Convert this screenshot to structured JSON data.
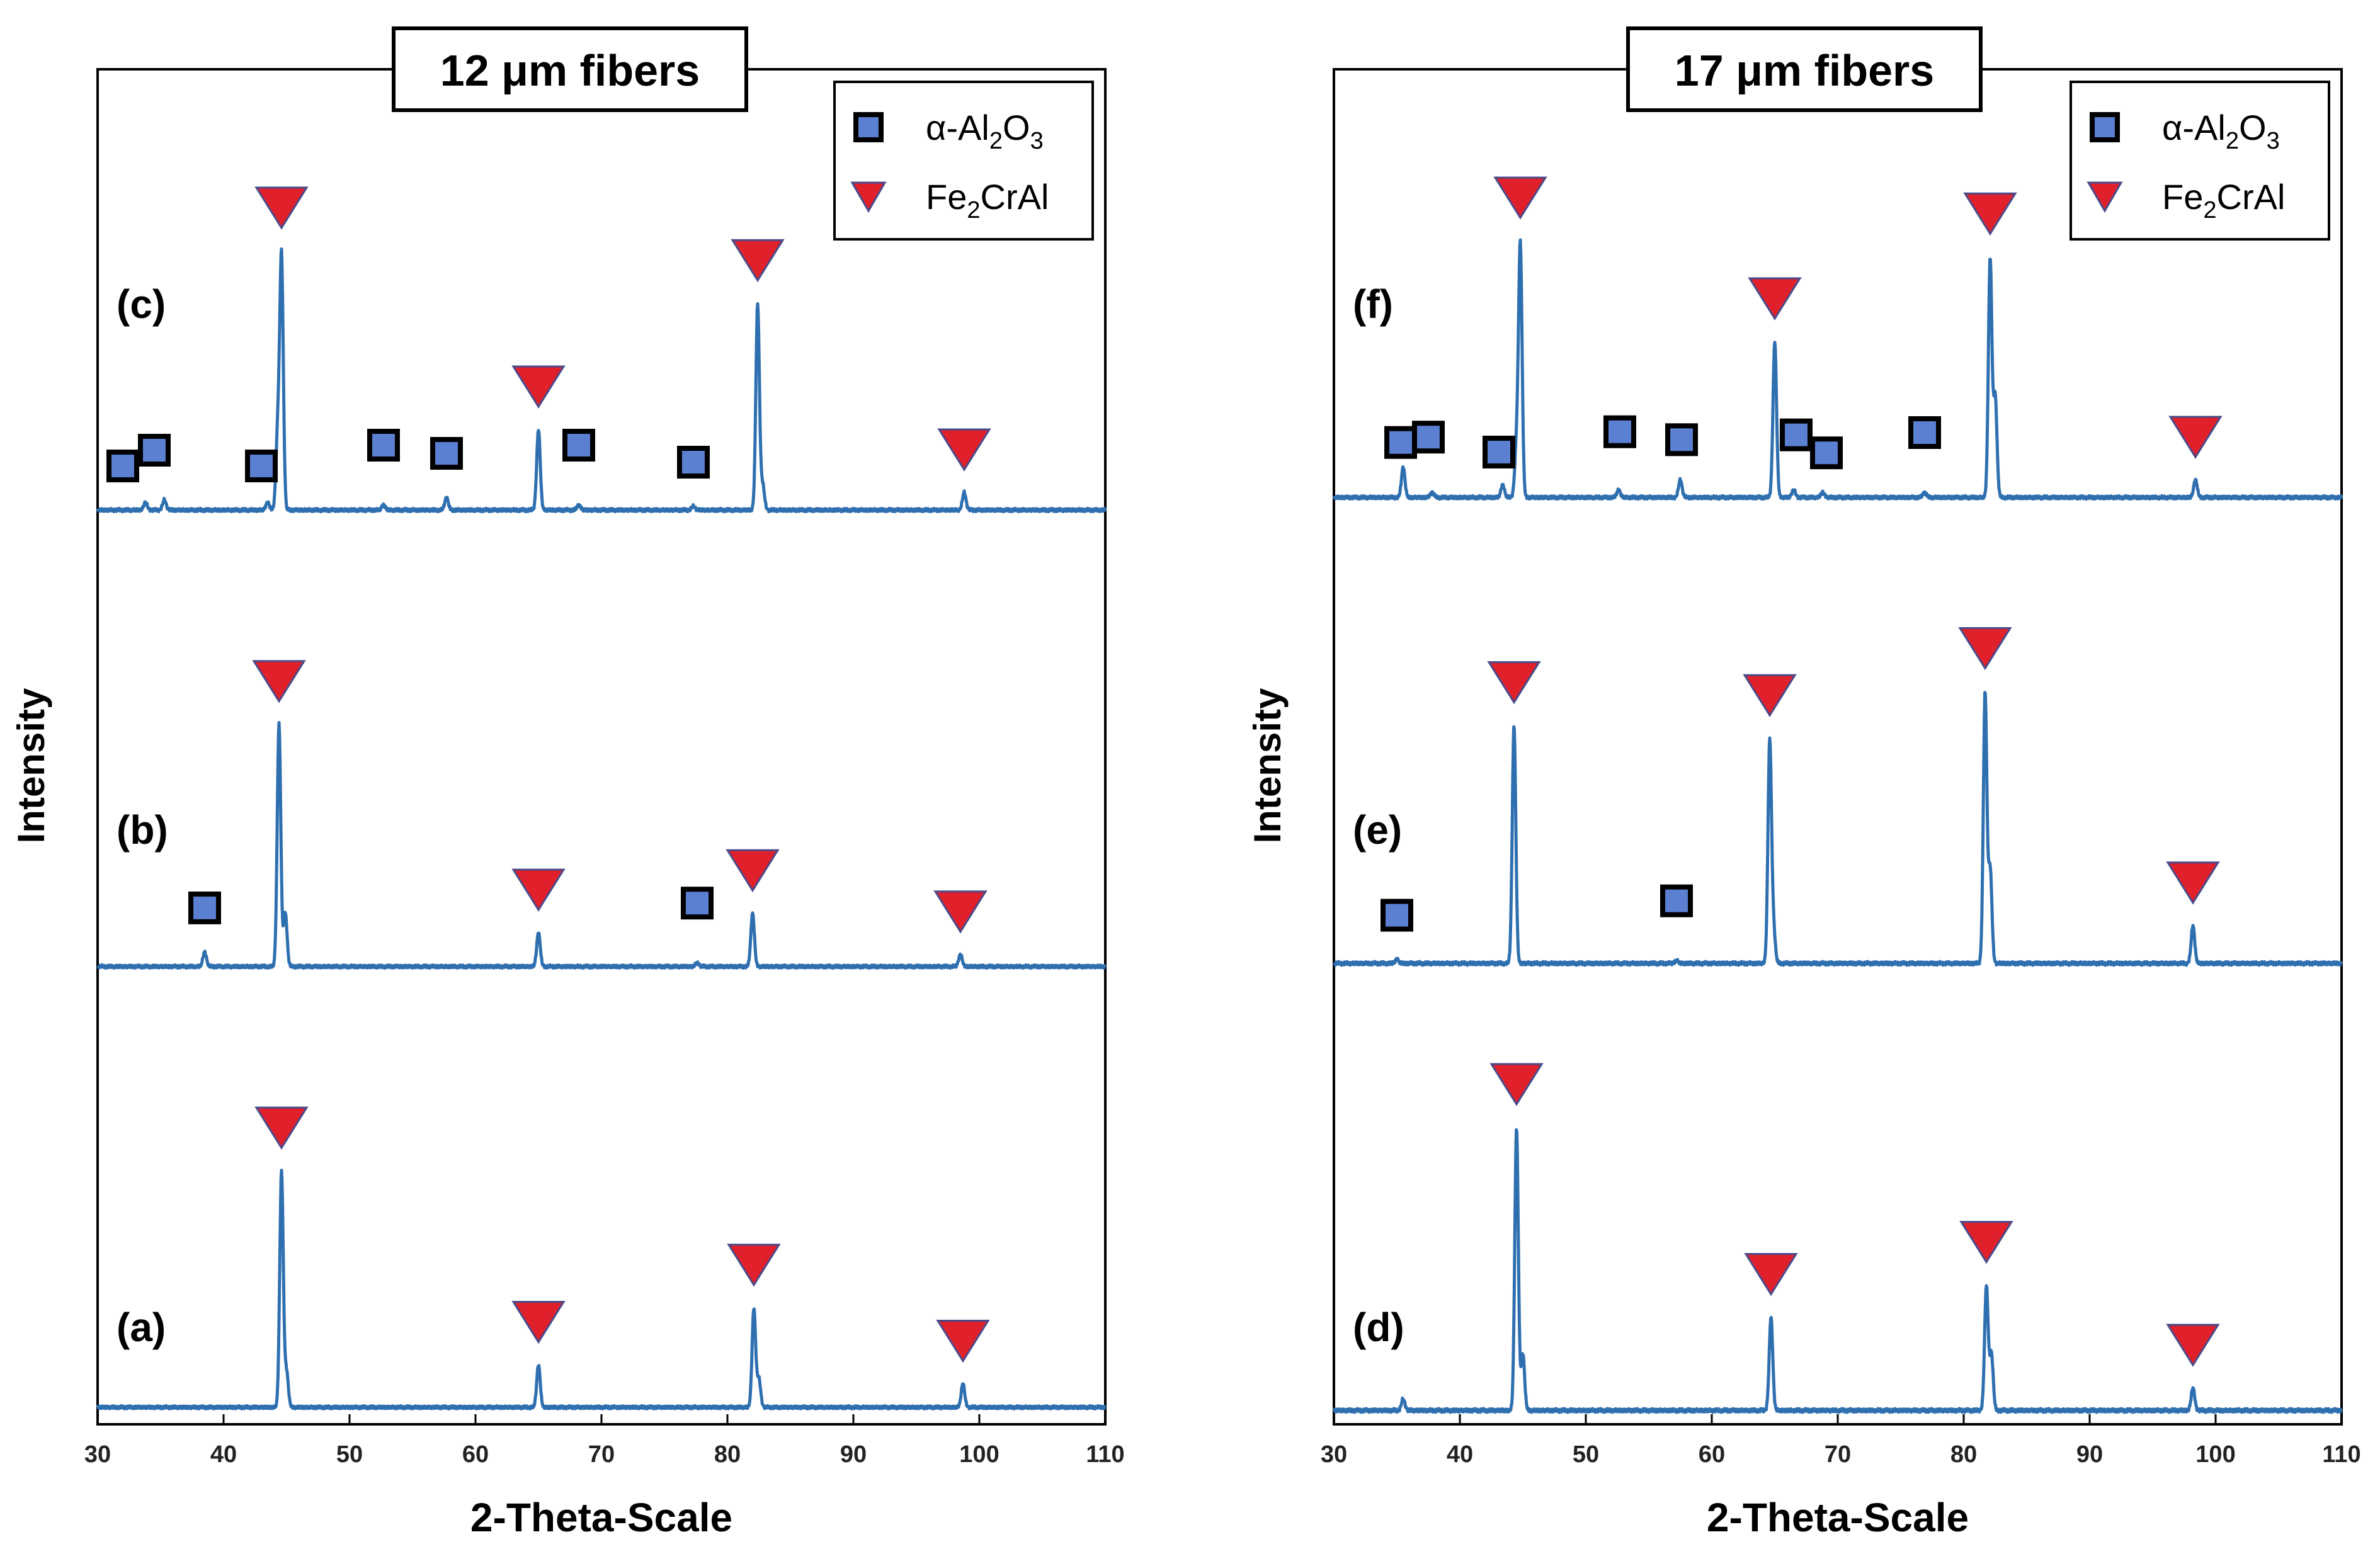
{
  "legend": {
    "entries": [
      "α-Al2O3",
      "Fe2CrAl"
    ],
    "placement": "top-right"
  },
  "colors": {
    "trace": "#2e6fb0",
    "square": "#5b7fd1",
    "triangle": "#e0202a",
    "frame": "#000000"
  },
  "chart_data": [
    {
      "type": "line",
      "title": "12 μm fibers",
      "xlabel": "2-Theta-Scale",
      "ylabel": "Intensity",
      "xlim": [
        30,
        110
      ],
      "xticks": [
        "30",
        "40",
        "50",
        "60",
        "70",
        "80",
        "90",
        "100",
        "110"
      ],
      "series": [
        {
          "name": "(a)",
          "label": "(a)",
          "peaks": [
            [
              44.6,
              1.0
            ],
            [
              45.0,
              0.15
            ],
            [
              65.0,
              0.18
            ],
            [
              82.1,
              0.42
            ],
            [
              82.5,
              0.12
            ],
            [
              98.7,
              0.1
            ]
          ],
          "fe2cral_markers": [
            44.6,
            65.0,
            82.1,
            98.7
          ],
          "al2o3_markers": []
        },
        {
          "name": "(b)",
          "label": "(b)",
          "peaks": [
            [
              44.4,
              1.0
            ],
            [
              44.9,
              0.22
            ],
            [
              38.5,
              0.06
            ],
            [
              65.0,
              0.14
            ],
            [
              82.0,
              0.22
            ],
            [
              98.5,
              0.05
            ],
            [
              77.6,
              0.015
            ]
          ],
          "fe2cral_markers": [
            44.4,
            65.0,
            82.0,
            98.5
          ],
          "al2o3_markers": [
            38.5,
            77.6
          ]
        },
        {
          "name": "(c)",
          "label": "(c)",
          "peaks": [
            [
              44.6,
              1.0
            ],
            [
              44.3,
              0.3
            ],
            [
              33.8,
              0.03
            ],
            [
              35.3,
              0.04
            ],
            [
              43.5,
              0.03
            ],
            [
              52.7,
              0.02
            ],
            [
              57.7,
              0.05
            ],
            [
              65.0,
              0.32
            ],
            [
              68.2,
              0.02
            ],
            [
              77.3,
              0.015
            ],
            [
              82.4,
              0.82
            ],
            [
              82.8,
              0.1
            ],
            [
              98.8,
              0.07
            ]
          ],
          "fe2cral_markers": [
            44.6,
            65.0,
            82.4,
            98.8
          ],
          "al2o3_markers": [
            32.0,
            34.5,
            43.0,
            52.7,
            57.7,
            68.2,
            77.3
          ]
        }
      ]
    },
    {
      "type": "line",
      "title": "17 μm fibers",
      "xlabel": "2-Theta-Scale",
      "ylabel": "Intensity",
      "xlim": [
        30,
        110
      ],
      "xticks": [
        "30",
        "40",
        "50",
        "60",
        "70",
        "80",
        "90",
        "100",
        "110"
      ],
      "series": [
        {
          "name": "(d)",
          "label": "(d)",
          "peaks": [
            [
              44.5,
              1.0
            ],
            [
              45.0,
              0.2
            ],
            [
              35.5,
              0.04
            ],
            [
              64.7,
              0.33
            ],
            [
              81.8,
              0.44
            ],
            [
              82.2,
              0.2
            ],
            [
              98.2,
              0.08
            ]
          ],
          "fe2cral_markers": [
            44.5,
            64.7,
            81.8,
            98.2
          ],
          "al2o3_markers": []
        },
        {
          "name": "(e)",
          "label": "(e)",
          "peaks": [
            [
              44.3,
              0.88
            ],
            [
              64.6,
              0.82
            ],
            [
              64.9,
              0.12
            ],
            [
              81.7,
              1.0
            ],
            [
              82.1,
              0.35
            ],
            [
              98.2,
              0.14
            ],
            [
              35.0,
              0.015
            ],
            [
              57.2,
              0.01
            ]
          ],
          "fe2cral_markers": [
            44.3,
            64.6,
            81.7,
            98.2
          ],
          "al2o3_markers": [
            35.0,
            57.2
          ]
        },
        {
          "name": "(f)",
          "label": "(f)",
          "peaks": [
            [
              44.8,
              1.0
            ],
            [
              44.5,
              0.2
            ],
            [
              35.5,
              0.12
            ],
            [
              37.8,
              0.02
            ],
            [
              43.4,
              0.05
            ],
            [
              52.6,
              0.03
            ],
            [
              57.5,
              0.07
            ],
            [
              65.0,
              0.62
            ],
            [
              66.5,
              0.03
            ],
            [
              68.8,
              0.02
            ],
            [
              76.9,
              0.02
            ],
            [
              82.1,
              0.95
            ],
            [
              82.5,
              0.4
            ],
            [
              98.4,
              0.07
            ]
          ],
          "fe2cral_markers": [
            44.8,
            65.0,
            82.1,
            98.4
          ],
          "al2o3_markers": [
            35.3,
            37.5,
            43.1,
            52.7,
            57.6,
            66.7,
            69.1,
            76.9
          ]
        }
      ]
    }
  ]
}
